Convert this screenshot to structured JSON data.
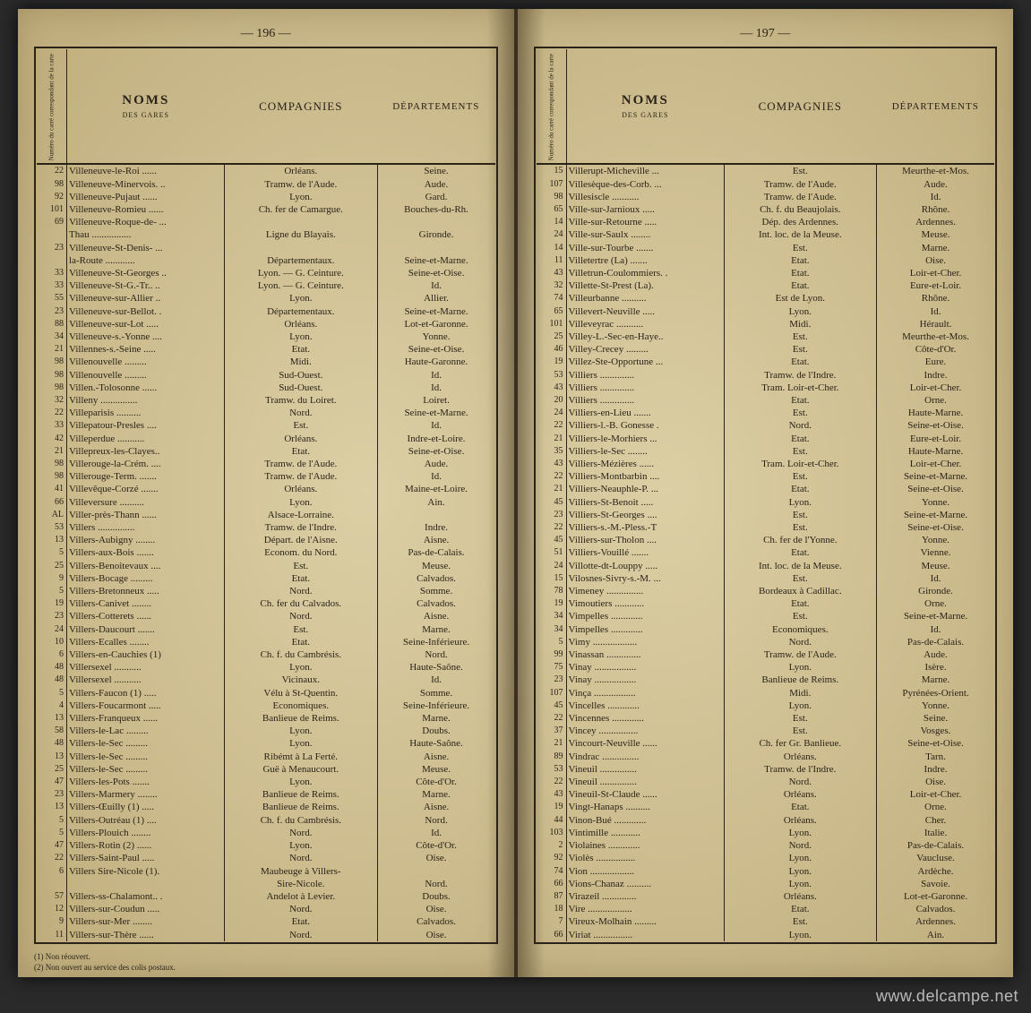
{
  "watermark": "www.delcampe.net",
  "left": {
    "page_number": "— 196 —",
    "footnotes": [
      "(1) Non réouvert.",
      "(2) Non ouvert au service des colis postaux."
    ],
    "headers": {
      "num": "Numéro du carré correspondant de la carte",
      "noms_big": "NOMS",
      "noms_small": "DES GARES",
      "comp": "COMPAGNIES",
      "dept": "DÉPARTEMENTS"
    },
    "rows": [
      {
        "n": "22",
        "g": "Villeneuve-le-Roi",
        "c": "Orléans.",
        "d": "Seine."
      },
      {
        "n": "98",
        "g": "Villeneuve-Minervois.",
        "c": "Tramw. de l'Aude.",
        "d": "Aude."
      },
      {
        "n": "92",
        "g": "Villeneuve-Pujaut",
        "c": "Lyon.",
        "d": "Gard."
      },
      {
        "n": "101",
        "g": "Villeneuve-Romieu",
        "c": "Ch. fer de Camargue.",
        "d": "Bouches-du-Rh."
      },
      {
        "n": "69",
        "g": "Villeneuve-Roque-de-",
        "c": "",
        "d": ""
      },
      {
        "n": "",
        "g": "  Thau",
        "c": "Ligne du Blayais.",
        "d": "Gironde."
      },
      {
        "n": "23",
        "g": "Villeneuve-St-Denis-",
        "c": "",
        "d": ""
      },
      {
        "n": "",
        "g": "  la-Route",
        "c": "Départementaux.",
        "d": "Seine-et-Marne."
      },
      {
        "n": "33",
        "g": "Villeneuve-St-Georges",
        "c": "Lyon. — G. Ceinture.",
        "d": "Seine-et-Oise."
      },
      {
        "n": "33",
        "g": "Villeneuve-St-G.-Tr..",
        "c": "Lyon. — G. Ceinture.",
        "d": "Id."
      },
      {
        "n": "55",
        "g": "Villeneuve-sur-Allier",
        "c": "Lyon.",
        "d": "Allier."
      },
      {
        "n": "23",
        "g": "Villeneuve-sur-Bellot.",
        "c": "Départementaux.",
        "d": "Seine-et-Marne."
      },
      {
        "n": "88",
        "g": "Villeneuve-sur-Lot",
        "c": "Orléans.",
        "d": "Lot-et-Garonne."
      },
      {
        "n": "34",
        "g": "Villeneuve-s.-Yonne",
        "c": "Lyon.",
        "d": "Yonne."
      },
      {
        "n": "21",
        "g": "Villennes-s.-Seine",
        "c": "Etat.",
        "d": "Seine-et-Oise."
      },
      {
        "n": "98",
        "g": "Villenouvelle",
        "c": "Midi.",
        "d": "Haute-Garonne."
      },
      {
        "n": "98",
        "g": "Villenouvelle",
        "c": "Sud-Ouest.",
        "d": "Id."
      },
      {
        "n": "98",
        "g": "Villen.-Tolosonne",
        "c": "Sud-Ouest.",
        "d": "Id."
      },
      {
        "n": "32",
        "g": "Villeny",
        "c": "Tramw. du Loiret.",
        "d": "Loiret."
      },
      {
        "n": "22",
        "g": "Villeparisis",
        "c": "Nord.",
        "d": "Seine-et-Marne."
      },
      {
        "n": "33",
        "g": "Villepatour-Presles",
        "c": "Est.",
        "d": "Id."
      },
      {
        "n": "42",
        "g": "Villeperdue",
        "c": "Orléans.",
        "d": "Indre-et-Loire."
      },
      {
        "n": "21",
        "g": "Villepreux-les-Clayes..",
        "c": "Etat.",
        "d": "Seine-et-Oise."
      },
      {
        "n": "98",
        "g": "Villerouge-la-Crém.",
        "c": "Tramw. de l'Aude.",
        "d": "Aude."
      },
      {
        "n": "98",
        "g": "Villerouge-Term.",
        "c": "Tramw. de l'Aude.",
        "d": "Id."
      },
      {
        "n": "41",
        "g": "Villevêque-Corzé",
        "c": "Orléans.",
        "d": "Maine-et-Loire."
      },
      {
        "n": "66",
        "g": "Villeversure",
        "c": "Lyon.",
        "d": "Ain."
      },
      {
        "n": "AL",
        "g": "Viller-près-Thann",
        "c": "Alsace-Lorraine.",
        "d": ""
      },
      {
        "n": "53",
        "g": "Villers",
        "c": "Tramw. de l'Indre.",
        "d": "Indre."
      },
      {
        "n": "13",
        "g": "Villers-Aubigny",
        "c": "Départ. de l'Aisne.",
        "d": "Aisne."
      },
      {
        "n": "5",
        "g": "Villers-aux-Bois",
        "c": "Econom. du Nord.",
        "d": "Pas-de-Calais."
      },
      {
        "n": "25",
        "g": "Villers-Benoitevaux",
        "c": "Est.",
        "d": "Meuse."
      },
      {
        "n": "9",
        "g": "Villers-Bocage",
        "c": "Etat.",
        "d": "Calvados."
      },
      {
        "n": "5",
        "g": "Villers-Bretonneux",
        "c": "Nord.",
        "d": "Somme."
      },
      {
        "n": "19",
        "g": "Villers-Canivet",
        "c": "Ch. fer du Calvados.",
        "d": "Calvados."
      },
      {
        "n": "23",
        "g": "Villers-Cotterets",
        "c": "Nord.",
        "d": "Aisne."
      },
      {
        "n": "24",
        "g": "Villers-Daucourt",
        "c": "Est.",
        "d": "Marne."
      },
      {
        "n": "10",
        "g": "Villers-Ecalles",
        "c": "Etat.",
        "d": "Seine-Inférieure."
      },
      {
        "n": "6",
        "g": "Villers-en-Cauchies (1)",
        "c": "Ch. f. du Cambrésis.",
        "d": "Nord."
      },
      {
        "n": "48",
        "g": "Villersexel",
        "c": "Lyon.",
        "d": "Haute-Saône."
      },
      {
        "n": "48",
        "g": "Villersexel",
        "c": "Vicinaux.",
        "d": "Id."
      },
      {
        "n": "5",
        "g": "Villers-Faucon (1)",
        "c": "Vélu à St-Quentin.",
        "d": "Somme."
      },
      {
        "n": "4",
        "g": "Villers-Foucarmont",
        "c": "Economiques.",
        "d": "Seine-Inférieure."
      },
      {
        "n": "13",
        "g": "Villers-Franqueux",
        "c": "Banlieue de Reims.",
        "d": "Marne."
      },
      {
        "n": "58",
        "g": "Villers-le-Lac",
        "c": "Lyon.",
        "d": "Doubs."
      },
      {
        "n": "48",
        "g": "Villers-le-Sec",
        "c": "Lyon.",
        "d": "Haute-Saône."
      },
      {
        "n": "13",
        "g": "Villers-le-Sec",
        "c": "Ribémt à La Ferté.",
        "d": "Aisne."
      },
      {
        "n": "25",
        "g": "Villers-le-Sec",
        "c": "Guë à Menaucourt.",
        "d": "Meuse."
      },
      {
        "n": "47",
        "g": "Villers-les-Pots",
        "c": "Lyon.",
        "d": "Côte-d'Or."
      },
      {
        "n": "23",
        "g": "Villers-Marmery",
        "c": "Banlieue de Reims.",
        "d": "Marne."
      },
      {
        "n": "13",
        "g": "Villers-Œuilly (1)",
        "c": "Banlieue de Reims.",
        "d": "Aisne."
      },
      {
        "n": "5",
        "g": "Villers-Outréau (1)",
        "c": "Ch. f. du Cambrésis.",
        "d": "Nord."
      },
      {
        "n": "5",
        "g": "Villers-Plouich",
        "c": "Nord.",
        "d": "Id."
      },
      {
        "n": "47",
        "g": "Villers-Rotin (2)",
        "c": "Lyon.",
        "d": "Côte-d'Or."
      },
      {
        "n": "22",
        "g": "Villers-Saint-Paul",
        "c": "Nord.",
        "d": "Oise."
      },
      {
        "n": "6",
        "g": "Villers Sire-Nicole (1).",
        "c": "Maubeuge à Villers-",
        "d": ""
      },
      {
        "n": "",
        "g": "",
        "c": "Sire-Nicole.",
        "d": "Nord."
      },
      {
        "n": "57",
        "g": "Villers-ss-Chalamont..",
        "c": "Andelot à Levier.",
        "d": "Doubs."
      },
      {
        "n": "12",
        "g": "Villers-sur-Coudun",
        "c": "Nord.",
        "d": "Oise."
      },
      {
        "n": "9",
        "g": "Villers-sur-Mer",
        "c": "Etat.",
        "d": "Calvados."
      },
      {
        "n": "11",
        "g": "Villers-sur-Thère",
        "c": "Nord.",
        "d": "Oise."
      }
    ]
  },
  "right": {
    "page_number": "— 197 —",
    "headers": {
      "num": "Numéro du carré correspondant de la carte",
      "noms_big": "NOMS",
      "noms_small": "DES GARES",
      "comp": "COMPAGNIES",
      "dept": "DÉPARTEMENTS"
    },
    "rows": [
      {
        "n": "15",
        "g": "Villerupt-Micheville",
        "c": "Est.",
        "d": "Meurthe-et-Mos."
      },
      {
        "n": "107",
        "g": "Villesèque-des-Corb.",
        "c": "Tramw. de l'Aude.",
        "d": "Aude."
      },
      {
        "n": "98",
        "g": "Villesiscle",
        "c": "Tramw. de l'Aude.",
        "d": "Id."
      },
      {
        "n": "65",
        "g": "Ville-sur-Jarnioux",
        "c": "Ch. f. du Beaujolais.",
        "d": "Rhône."
      },
      {
        "n": "14",
        "g": "Ville-sur-Retourne",
        "c": "Dép. des Ardennes.",
        "d": "Ardennes."
      },
      {
        "n": "24",
        "g": "Ville-sur-Saulx",
        "c": "Int. loc. de la Meuse.",
        "d": "Meuse."
      },
      {
        "n": "14",
        "g": "Ville-sur-Tourbe",
        "c": "Est.",
        "d": "Marne."
      },
      {
        "n": "11",
        "g": "Villetertre (La)",
        "c": "Etat.",
        "d": "Oise."
      },
      {
        "n": "43",
        "g": "Villetrun-Coulommiers.",
        "c": "Etat.",
        "d": "Loir-et-Cher."
      },
      {
        "n": "32",
        "g": "Villette-St-Prest (La).",
        "c": "Etat.",
        "d": "Eure-et-Loir."
      },
      {
        "n": "74",
        "g": "Villeurbanne",
        "c": "Est de Lyon.",
        "d": "Rhône."
      },
      {
        "n": "65",
        "g": "Villevert-Neuville",
        "c": "Lyon.",
        "d": "Id."
      },
      {
        "n": "101",
        "g": "Villeveyrac",
        "c": "Midi.",
        "d": "Hérault."
      },
      {
        "n": "25",
        "g": "Villey-L.-Sec-en-Haye..",
        "c": "Est.",
        "d": "Meurthe-et-Mos."
      },
      {
        "n": "46",
        "g": "Villey-Crecey",
        "c": "Est.",
        "d": "Côte-d'Or."
      },
      {
        "n": "19",
        "g": "Villez-Ste-Opportune",
        "c": "Etat.",
        "d": "Eure."
      },
      {
        "n": "53",
        "g": "Villiers",
        "c": "Tramw. de l'Indre.",
        "d": "Indre."
      },
      {
        "n": "43",
        "g": "Villiers",
        "c": "Tram. Loir-et-Cher.",
        "d": "Loir-et-Cher."
      },
      {
        "n": "20",
        "g": "Villiers",
        "c": "Etat.",
        "d": "Orne."
      },
      {
        "n": "24",
        "g": "Villiers-en-Lieu",
        "c": "Est.",
        "d": "Haute-Marne."
      },
      {
        "n": "22",
        "g": "Villiers-l.-B. Gonesse",
        "c": "Nord.",
        "d": "Seine-et-Oise."
      },
      {
        "n": "21",
        "g": "Villiers-le-Morhiers",
        "c": "Etat.",
        "d": "Eure-et-Loir."
      },
      {
        "n": "35",
        "g": "Villiers-le-Sec",
        "c": "Est.",
        "d": "Haute-Marne."
      },
      {
        "n": "43",
        "g": "Villiers-Mézières",
        "c": "Tram. Loir-et-Cher.",
        "d": "Loir-et-Cher."
      },
      {
        "n": "22",
        "g": "Villiers-Montbarbin",
        "c": "Est.",
        "d": "Seine-et-Marne."
      },
      {
        "n": "21",
        "g": "Villiers-Neauphle-P.",
        "c": "Etat.",
        "d": "Seine-et-Oise."
      },
      {
        "n": "45",
        "g": "Villiers-St-Benoit",
        "c": "Lyon.",
        "d": "Yonne."
      },
      {
        "n": "23",
        "g": "Villiers-St-Georges",
        "c": "Est.",
        "d": "Seine-et-Marne."
      },
      {
        "n": "22",
        "g": "Villiers-s.-M.-Pless.-T",
        "c": "Est.",
        "d": "Seine-et-Oise."
      },
      {
        "n": "45",
        "g": "Villiers-sur-Tholon",
        "c": "Ch. fer de l'Yonne.",
        "d": "Yonne."
      },
      {
        "n": "51",
        "g": "Villiers-Vouillé",
        "c": "Etat.",
        "d": "Vienne."
      },
      {
        "n": "24",
        "g": "Villotte-dt-Louppy",
        "c": "Int. loc. de la Meuse.",
        "d": "Meuse."
      },
      {
        "n": "15",
        "g": "Vilosnes-Sivry-s.-M.",
        "c": "Est.",
        "d": "Id."
      },
      {
        "n": "78",
        "g": "Vimeney",
        "c": "Bordeaux à Cadillac.",
        "d": "Gironde."
      },
      {
        "n": "19",
        "g": "Vimoutiers",
        "c": "Etat.",
        "d": "Orne."
      },
      {
        "n": "34",
        "g": "Vimpelles",
        "c": "Est.",
        "d": "Seine-et-Marne."
      },
      {
        "n": "34",
        "g": "Vimpelles",
        "c": "Economiques.",
        "d": "Id."
      },
      {
        "n": "5",
        "g": "Vimy",
        "c": "Nord.",
        "d": "Pas-de-Calais."
      },
      {
        "n": "99",
        "g": "Vinassan",
        "c": "Tramw. de l'Aude.",
        "d": "Aude."
      },
      {
        "n": "75",
        "g": "Vinay",
        "c": "Lyon.",
        "d": "Isère."
      },
      {
        "n": "23",
        "g": "Vinay",
        "c": "Banlieue de Reims.",
        "d": "Marne."
      },
      {
        "n": "107",
        "g": "Vinça",
        "c": "Midi.",
        "d": "Pyrénées-Orient."
      },
      {
        "n": "45",
        "g": "Vincelles",
        "c": "Lyon.",
        "d": "Yonne."
      },
      {
        "n": "22",
        "g": "Vincennes",
        "c": "Est.",
        "d": "Seine."
      },
      {
        "n": "37",
        "g": "Vincey",
        "c": "Est.",
        "d": "Vosges."
      },
      {
        "n": "21",
        "g": "Vincourt-Neuville",
        "c": "Ch. fer Gr. Banlieue.",
        "d": "Seine-et-Oise."
      },
      {
        "n": "89",
        "g": "Vindrac",
        "c": "Orléans.",
        "d": "Tarn."
      },
      {
        "n": "53",
        "g": "Vineuil",
        "c": "Tramw. de l'Indre.",
        "d": "Indre."
      },
      {
        "n": "22",
        "g": "Vineuil",
        "c": "Nord.",
        "d": "Oise."
      },
      {
        "n": "43",
        "g": "Vineuil-St-Claude",
        "c": "Orléans.",
        "d": "Loir-et-Cher."
      },
      {
        "n": "19",
        "g": "Vingt-Hanaps",
        "c": "Etat.",
        "d": "Orne."
      },
      {
        "n": "44",
        "g": "Vinon-Bué",
        "c": "Orléans.",
        "d": "Cher."
      },
      {
        "n": "103",
        "g": "Vintimille",
        "c": "Lyon.",
        "d": "Italie."
      },
      {
        "n": "2",
        "g": "Violaines",
        "c": "Nord.",
        "d": "Pas-de-Calais."
      },
      {
        "n": "92",
        "g": "Violès",
        "c": "Lyon.",
        "d": "Vaucluse."
      },
      {
        "n": "74",
        "g": "Vion",
        "c": "Lyon.",
        "d": "Ardèche."
      },
      {
        "n": "66",
        "g": "Vions-Chanaz",
        "c": "Lyon.",
        "d": "Savoie."
      },
      {
        "n": "87",
        "g": "Virazeil",
        "c": "Orléans.",
        "d": "Lot-et-Garonne."
      },
      {
        "n": "18",
        "g": "Vire",
        "c": "Etat.",
        "d": "Calvados."
      },
      {
        "n": "7",
        "g": "Vireux-Molhain",
        "c": "Est.",
        "d": "Ardennes."
      },
      {
        "n": "66",
        "g": "Viriat",
        "c": "Lyon.",
        "d": "Ain."
      }
    ]
  }
}
